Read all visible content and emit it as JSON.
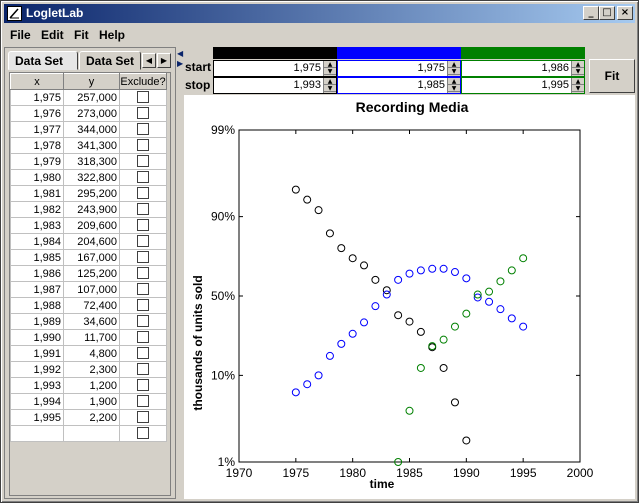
{
  "window": {
    "title": "LogletLab",
    "minimize_glyph": "_",
    "maximize_glyph": "□",
    "close_glyph": "×"
  },
  "menu": [
    "File",
    "Edit",
    "Fit",
    "Help"
  ],
  "tabs": [
    "Data Set",
    "Data Set"
  ],
  "table": {
    "headers": [
      "x",
      "y",
      "Exclude?"
    ],
    "rows": [
      [
        "1,975",
        "257,000"
      ],
      [
        "1,976",
        "273,000"
      ],
      [
        "1,977",
        "344,000"
      ],
      [
        "1,978",
        "341,300"
      ],
      [
        "1,979",
        "318,300"
      ],
      [
        "1,980",
        "322,800"
      ],
      [
        "1,981",
        "295,200"
      ],
      [
        "1,982",
        "243,900"
      ],
      [
        "1,983",
        "209,600"
      ],
      [
        "1,984",
        "204,600"
      ],
      [
        "1,985",
        "167,000"
      ],
      [
        "1,986",
        "125,200"
      ],
      [
        "1,987",
        "107,000"
      ],
      [
        "1,988",
        "72,400"
      ],
      [
        "1,989",
        "34,600"
      ],
      [
        "1,990",
        "11,700"
      ],
      [
        "1,991",
        "4,800"
      ],
      [
        "1,992",
        "2,300"
      ],
      [
        "1,993",
        "1,200"
      ],
      [
        "1,994",
        "1,900"
      ],
      [
        "1,995",
        "2,200"
      ],
      [
        "",
        ""
      ]
    ]
  },
  "params": {
    "start_label": "start",
    "stop_label": "stop",
    "colors": [
      "#000000",
      "#0000ff",
      "#008000"
    ],
    "start": [
      "1,975",
      "1,975",
      "1,986"
    ],
    "stop": [
      "1,993",
      "1,985",
      "1,995"
    ],
    "fit_label": "Fit"
  },
  "chart_data": {
    "type": "scatter",
    "title": "Recording Media",
    "xlabel": "time",
    "ylabel": "thousands of units sold",
    "x_ticks": [
      1970,
      1975,
      1980,
      1985,
      1990,
      1995,
      2000
    ],
    "y_tick_labels": [
      "99%",
      "90%",
      "50%",
      "10%",
      "1%"
    ],
    "xlim": [
      1970,
      2000
    ],
    "y_scale": "logit (fraction)",
    "ylim": [
      0.01,
      0.99
    ],
    "series": [
      {
        "color": "#000000",
        "x": [
          1975,
          1976,
          1977,
          1978,
          1979,
          1980,
          1981,
          1982,
          1983,
          1984,
          1985,
          1986,
          1987,
          1988,
          1989,
          1990
        ],
        "y": [
          0.95,
          0.935,
          0.915,
          0.85,
          0.79,
          0.74,
          0.7,
          0.61,
          0.54,
          0.37,
          0.33,
          0.27,
          0.195,
          0.12,
          0.05,
          0.018
        ]
      },
      {
        "color": "#0000ff",
        "x": [
          1975,
          1976,
          1977,
          1978,
          1979,
          1980,
          1981,
          1982,
          1983,
          1984,
          1985,
          1986,
          1987,
          1988,
          1989,
          1990,
          1991,
          1992,
          1993,
          1994,
          1995
        ],
        "y": [
          0.065,
          0.08,
          0.1,
          0.16,
          0.21,
          0.26,
          0.325,
          0.43,
          0.51,
          0.61,
          0.65,
          0.67,
          0.68,
          0.68,
          0.66,
          0.62,
          0.49,
          0.46,
          0.41,
          0.35,
          0.3
        ]
      },
      {
        "color": "#008000",
        "x": [
          1984,
          1985,
          1986,
          1987,
          1988,
          1989,
          1990,
          1991,
          1992,
          1993,
          1994,
          1995
        ],
        "y": [
          0.01,
          0.04,
          0.12,
          0.2,
          0.23,
          0.3,
          0.38,
          0.51,
          0.53,
          0.6,
          0.67,
          0.74
        ]
      }
    ]
  }
}
